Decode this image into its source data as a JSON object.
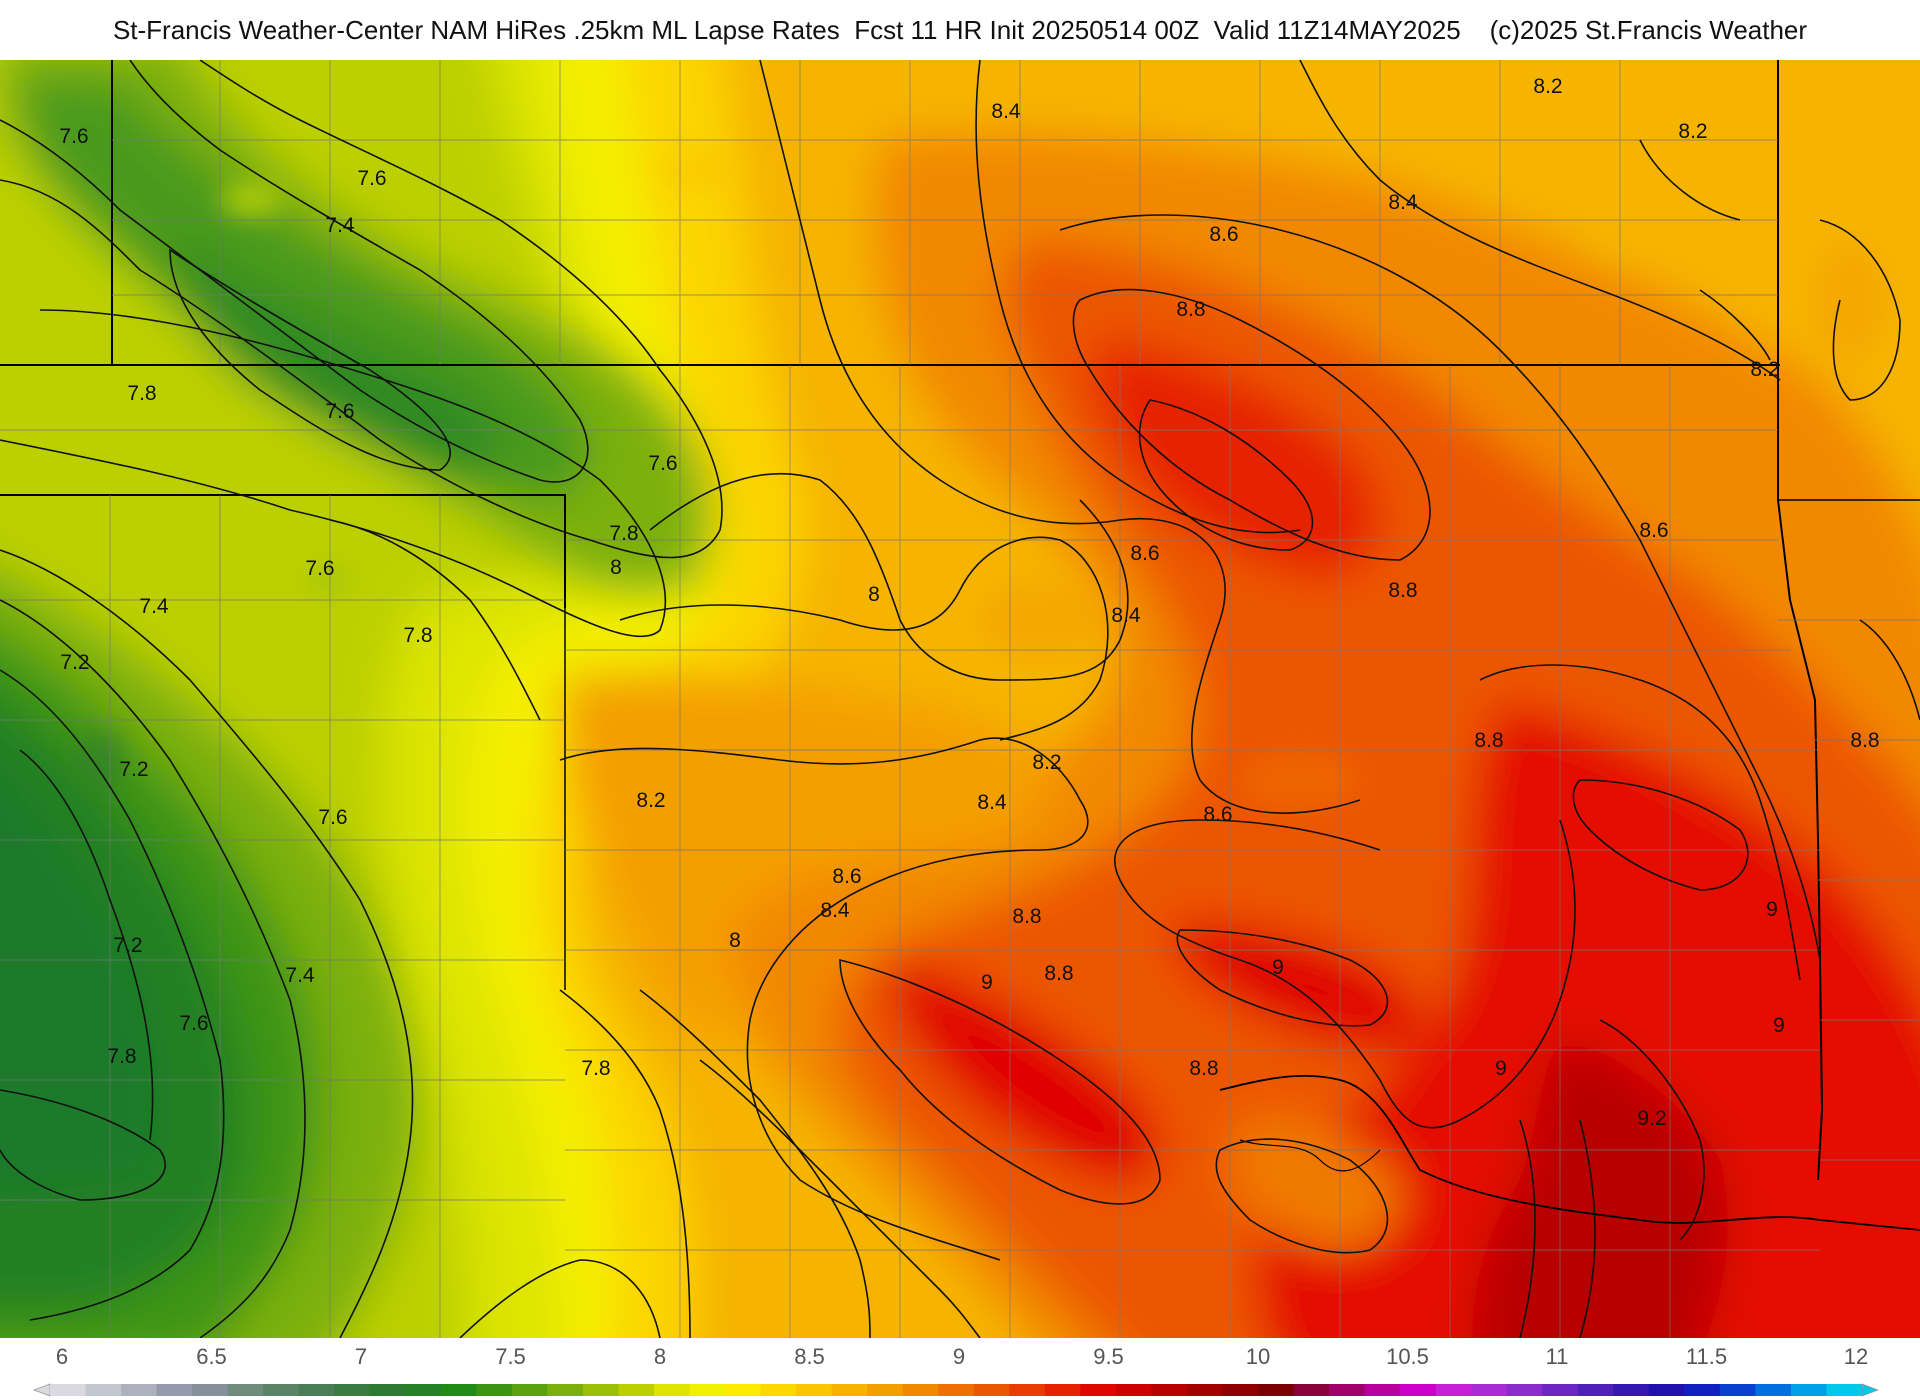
{
  "title": "St-Francis Weather-Center NAM HiRes .25km ML Lapse Rates  Fcst 11 HR Init 20250514 00Z  Valid 11Z14MAY2025    (c)2025 St.Francis Weather",
  "colorbar": {
    "ticks": [
      "6",
      "6.5",
      "7",
      "7.5",
      "8",
      "8.5",
      "9",
      "9.5",
      "10",
      "10.5",
      "11",
      "11.5",
      "12"
    ],
    "min": 6,
    "max": 12,
    "colors": [
      "#d9d9df",
      "#c4c6cf",
      "#aeb0bd",
      "#979aab",
      "#84909a",
      "#6f8b79",
      "#5b8466",
      "#4a7d55",
      "#3a7a40",
      "#2d7a32",
      "#238024",
      "#1f8a16",
      "#3c9512",
      "#5ba20f",
      "#7bb00c",
      "#9bbf07",
      "#bcd000",
      "#dce400",
      "#f0f000",
      "#fcec00",
      "#fbd800",
      "#f9c600",
      "#f6b400",
      "#f49f00",
      "#f28800",
      "#ef7000",
      "#ec5600",
      "#e93c00",
      "#e62200",
      "#e00600",
      "#cf0000",
      "#b80000",
      "#a30000",
      "#8e0000",
      "#7a0000",
      "#8a0038",
      "#a0006a",
      "#b8009c",
      "#cc00c8",
      "#c620d6",
      "#a72cd6",
      "#8a2ccc",
      "#6c26c2",
      "#4e20b8",
      "#3418b0",
      "#2010b0",
      "#1020c0",
      "#0a40d0",
      "#0070e0",
      "#00a0e8",
      "#00c8e8"
    ]
  },
  "contour_labels": [
    {
      "text": "7.6"
    },
    {
      "text": "7.6"
    },
    {
      "text": "7.4"
    },
    {
      "text": "7.8"
    },
    {
      "text": "7.6"
    },
    {
      "text": "7.6"
    },
    {
      "text": "7.8"
    },
    {
      "text": "8"
    },
    {
      "text": "7.6"
    },
    {
      "text": "7.4"
    },
    {
      "text": "7.8"
    },
    {
      "text": "7.2"
    },
    {
      "text": "7.2"
    },
    {
      "text": "7.6"
    },
    {
      "text": "7.2"
    },
    {
      "text": "7.4"
    },
    {
      "text": "7.6"
    },
    {
      "text": "7.8"
    },
    {
      "text": "7.8"
    },
    {
      "text": "8.2"
    },
    {
      "text": "8"
    },
    {
      "text": "8.4"
    },
    {
      "text": "8.6"
    },
    {
      "text": "8.8"
    },
    {
      "text": "8.4"
    },
    {
      "text": "8.2"
    },
    {
      "text": "8.2"
    },
    {
      "text": "8.2"
    },
    {
      "text": "8.6"
    },
    {
      "text": "8.8"
    },
    {
      "text": "8.6"
    },
    {
      "text": "8.4"
    },
    {
      "text": "8"
    },
    {
      "text": "8.2"
    },
    {
      "text": "8.4"
    },
    {
      "text": "8.6"
    },
    {
      "text": "8.8"
    },
    {
      "text": "8.8"
    },
    {
      "text": "8.8"
    },
    {
      "text": "9"
    },
    {
      "text": "9"
    },
    {
      "text": "9"
    },
    {
      "text": "9"
    },
    {
      "text": "9"
    },
    {
      "text": "8.8"
    },
    {
      "text": "8.6"
    },
    {
      "text": "8.4"
    },
    {
      "text": "8.8"
    },
    {
      "text": "9.2"
    }
  ]
}
